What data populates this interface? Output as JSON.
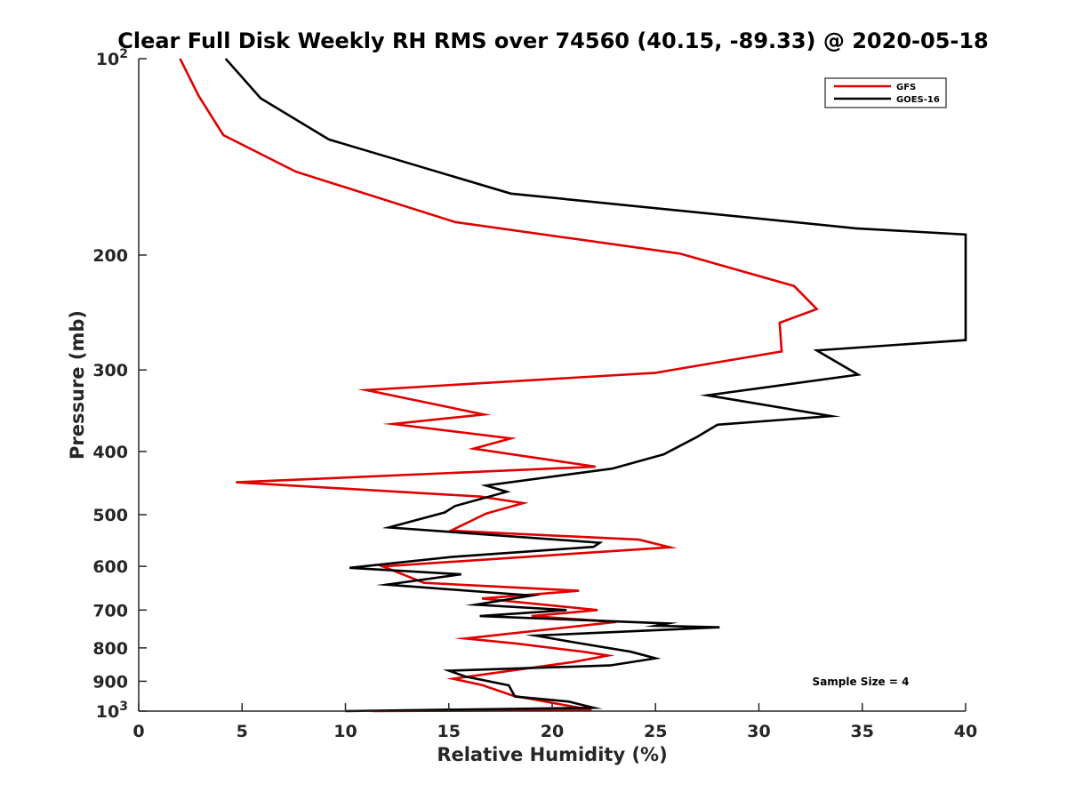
{
  "chart_data": {
    "type": "line",
    "title": "Clear Full Disk Weekly RH RMS over 74560 (40.15, -89.33) @ 2020-05-18",
    "xlabel": "Relative Humidity (%)",
    "ylabel": "Pressure (mb)",
    "xlim": [
      0,
      40
    ],
    "ylim": [
      100,
      1000
    ],
    "y_scale": "log",
    "y_reversed": true,
    "grid": false,
    "legend_position": "top-right",
    "x_ticks": [
      0,
      5,
      10,
      15,
      20,
      25,
      30,
      35,
      40
    ],
    "y_ticks": [
      {
        "value": 100,
        "base": "10",
        "exp": "2"
      },
      {
        "value": 200,
        "label": "200"
      },
      {
        "value": 300,
        "label": "300"
      },
      {
        "value": 400,
        "label": "400"
      },
      {
        "value": 500,
        "label": "500"
      },
      {
        "value": 600,
        "label": "600"
      },
      {
        "value": 700,
        "label": "700"
      },
      {
        "value": 800,
        "label": "800"
      },
      {
        "value": 900,
        "label": "900"
      },
      {
        "value": 1000,
        "base": "10",
        "exp": "3"
      }
    ],
    "annotation": "Sample Size = 4",
    "series": [
      {
        "name": "GFS",
        "color": "#e00000",
        "points": [
          [
            2.0,
            100
          ],
          [
            2.9,
            114
          ],
          [
            4.1,
            131
          ],
          [
            7.6,
            149
          ],
          [
            15.3,
            178
          ],
          [
            26.2,
            199
          ],
          [
            31.7,
            223
          ],
          [
            32.8,
            242
          ],
          [
            31.0,
            254
          ],
          [
            31.1,
            281
          ],
          [
            25.0,
            303
          ],
          [
            11.0,
            322
          ],
          [
            16.7,
            351
          ],
          [
            12.3,
            363
          ],
          [
            18.0,
            382
          ],
          [
            16.2,
            396
          ],
          [
            22.1,
            422
          ],
          [
            4.7,
            446
          ],
          [
            16.5,
            469
          ],
          [
            18.6,
            480
          ],
          [
            16.8,
            498
          ],
          [
            15.1,
            529
          ],
          [
            24.2,
            546
          ],
          [
            25.7,
            561
          ],
          [
            11.8,
            600
          ],
          [
            13.8,
            636
          ],
          [
            21.3,
            654
          ],
          [
            16.6,
            672
          ],
          [
            22.2,
            700
          ],
          [
            19.0,
            715
          ],
          [
            23.1,
            730
          ],
          [
            15.8,
            774
          ],
          [
            18.3,
            788
          ],
          [
            21.5,
            811
          ],
          [
            22.7,
            822
          ],
          [
            21.0,
            841
          ],
          [
            15.2,
            892
          ],
          [
            16.6,
            912
          ],
          [
            18.1,
            947
          ],
          [
            21.0,
            984
          ],
          [
            21.9,
            996
          ],
          [
            11.3,
            1000
          ]
        ]
      },
      {
        "name": "GOES-16",
        "color": "#000000",
        "points": [
          [
            4.2,
            100
          ],
          [
            5.9,
            115
          ],
          [
            9.2,
            133
          ],
          [
            18.0,
            161
          ],
          [
            34.7,
            182
          ],
          [
            40.0,
            186
          ],
          [
            40.0,
            270
          ],
          [
            32.8,
            280
          ],
          [
            34.8,
            305
          ],
          [
            27.5,
            328
          ],
          [
            33.5,
            353
          ],
          [
            28.0,
            364
          ],
          [
            27.0,
            380
          ],
          [
            25.4,
            404
          ],
          [
            22.9,
            425
          ],
          [
            16.8,
            451
          ],
          [
            17.8,
            461
          ],
          [
            15.3,
            485
          ],
          [
            14.8,
            496
          ],
          [
            12.1,
            523
          ],
          [
            22.3,
            552
          ],
          [
            22.0,
            560
          ],
          [
            15.2,
            580
          ],
          [
            10.2,
            603
          ],
          [
            15.6,
            617
          ],
          [
            12.0,
            640
          ],
          [
            19.0,
            665
          ],
          [
            16.3,
            687
          ],
          [
            20.7,
            700
          ],
          [
            16.5,
            715
          ],
          [
            25.6,
            734
          ],
          [
            25.0,
            740
          ],
          [
            28.1,
            744
          ],
          [
            19.2,
            766
          ],
          [
            21.0,
            784
          ],
          [
            23.8,
            811
          ],
          [
            25.0,
            830
          ],
          [
            22.8,
            851
          ],
          [
            15.0,
            867
          ],
          [
            15.8,
            885
          ],
          [
            17.9,
            913
          ],
          [
            18.2,
            950
          ],
          [
            20.8,
            967
          ],
          [
            22.0,
            988
          ],
          [
            10.0,
            1000
          ]
        ]
      }
    ]
  }
}
